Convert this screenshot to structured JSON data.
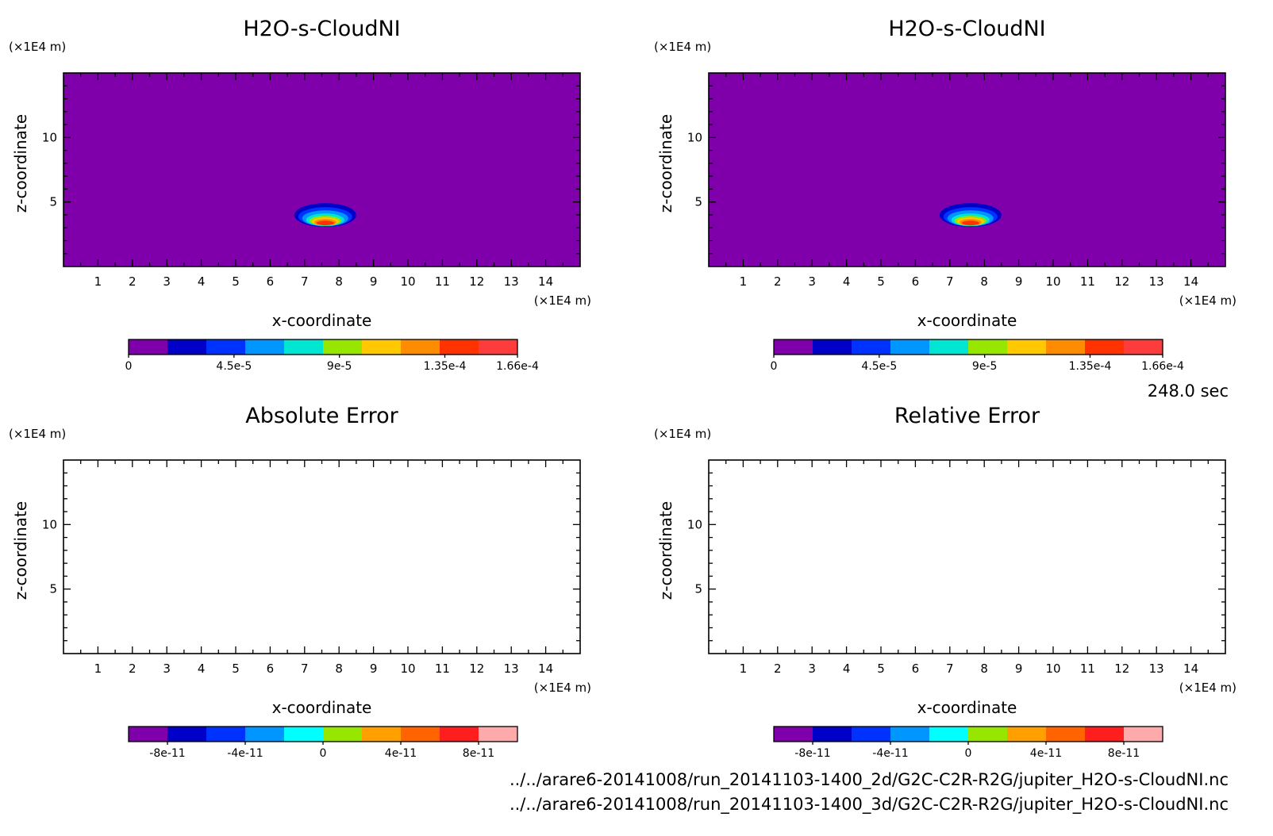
{
  "time_label": "248.0 sec",
  "files": [
    "../../arare6-20141008/run_20141103-1400_2d/G2C-C2R-R2G/jupiter_H2O-s-CloudNI.nc",
    "../../arare6-20141008/run_20141103-1400_3d/G2C-C2R-R2G/jupiter_H2O-s-CloudNI.nc"
  ],
  "chart_data": [
    {
      "type": "heatmap",
      "title": "H2O-s-CloudNI",
      "xlabel": "x-coordinate",
      "ylabel": "z-coordinate",
      "x_unit": "(×1E4 m)",
      "z_unit": "(×1E4 m)",
      "xlim": [
        0,
        15
      ],
      "zlim": [
        0,
        15
      ],
      "x_ticks": [
        1,
        2,
        3,
        4,
        5,
        6,
        7,
        8,
        9,
        10,
        11,
        12,
        13,
        14
      ],
      "z_ticks": [
        5,
        10
      ],
      "background_color": "#7f00aa",
      "feature": {
        "description_center_x": 7.6,
        "center_z": 3.8,
        "max_value": 0.000166
      },
      "colorbar": {
        "colors": [
          "#7f00aa",
          "#0000c8",
          "#0032ff",
          "#0096ff",
          "#00e6d2",
          "#96e600",
          "#ffc800",
          "#ff8c00",
          "#ff3200",
          "#ff3c3c"
        ],
        "min": 0,
        "max": 0.000166,
        "tick_values": [
          0,
          4.5e-05,
          9e-05,
          0.000135,
          0.000166
        ],
        "tick_labels": [
          "0",
          "4.5e-5",
          "9e-5",
          "1.35e-4",
          "1.66e-4"
        ]
      }
    },
    {
      "type": "heatmap",
      "title": "H2O-s-CloudNI",
      "xlabel": "x-coordinate",
      "ylabel": "z-coordinate",
      "x_unit": "(×1E4 m)",
      "z_unit": "(×1E4 m)",
      "xlim": [
        0,
        15
      ],
      "zlim": [
        0,
        15
      ],
      "x_ticks": [
        1,
        2,
        3,
        4,
        5,
        6,
        7,
        8,
        9,
        10,
        11,
        12,
        13,
        14
      ],
      "z_ticks": [
        5,
        10
      ],
      "background_color": "#7f00aa",
      "feature": {
        "description_center_x": 7.6,
        "center_z": 3.8,
        "max_value": 0.000166
      },
      "colorbar": {
        "colors": [
          "#7f00aa",
          "#0000c8",
          "#0032ff",
          "#0096ff",
          "#00e6d2",
          "#96e600",
          "#ffc800",
          "#ff8c00",
          "#ff3200",
          "#ff3c3c"
        ],
        "min": 0,
        "max": 0.000166,
        "tick_values": [
          0,
          4.5e-05,
          9e-05,
          0.000135,
          0.000166
        ],
        "tick_labels": [
          "0",
          "4.5e-5",
          "9e-5",
          "1.35e-4",
          "1.66e-4"
        ]
      }
    },
    {
      "type": "heatmap",
      "title": "Absolute Error",
      "xlabel": "x-coordinate",
      "ylabel": "z-coordinate",
      "x_unit": "(×1E4 m)",
      "z_unit": "(×1E4 m)",
      "xlim": [
        0,
        15
      ],
      "zlim": [
        0,
        15
      ],
      "x_ticks": [
        1,
        2,
        3,
        4,
        5,
        6,
        7,
        8,
        9,
        10,
        11,
        12,
        13,
        14
      ],
      "z_ticks": [
        5,
        10
      ],
      "background_color": "#ffffff",
      "colorbar": {
        "colors": [
          "#7f00aa",
          "#0000c8",
          "#0032ff",
          "#0096ff",
          "#00ffff",
          "#96e600",
          "#ffa000",
          "#ff6400",
          "#ff1e1e",
          "#ffaaaa"
        ],
        "min": -1e-10,
        "max": 1e-10,
        "tick_values": [
          -8e-11,
          -4e-11,
          0,
          4e-11,
          8e-11
        ],
        "tick_labels": [
          "-8e-11",
          "-4e-11",
          "0",
          "4e-11",
          "8e-11"
        ]
      }
    },
    {
      "type": "heatmap",
      "title": "Relative Error",
      "xlabel": "x-coordinate",
      "ylabel": "z-coordinate",
      "x_unit": "(×1E4 m)",
      "z_unit": "(×1E4 m)",
      "xlim": [
        0,
        15
      ],
      "zlim": [
        0,
        15
      ],
      "x_ticks": [
        1,
        2,
        3,
        4,
        5,
        6,
        7,
        8,
        9,
        10,
        11,
        12,
        13,
        14
      ],
      "z_ticks": [
        5,
        10
      ],
      "background_color": "#ffffff",
      "colorbar": {
        "colors": [
          "#7f00aa",
          "#0000c8",
          "#0032ff",
          "#0096ff",
          "#00ffff",
          "#96e600",
          "#ffa000",
          "#ff6400",
          "#ff1e1e",
          "#ffaaaa"
        ],
        "min": -1e-10,
        "max": 1e-10,
        "tick_values": [
          -8e-11,
          -4e-11,
          0,
          4e-11,
          8e-11
        ],
        "tick_labels": [
          "-8e-11",
          "-4e-11",
          "0",
          "4e-11",
          "8e-11"
        ]
      }
    }
  ]
}
